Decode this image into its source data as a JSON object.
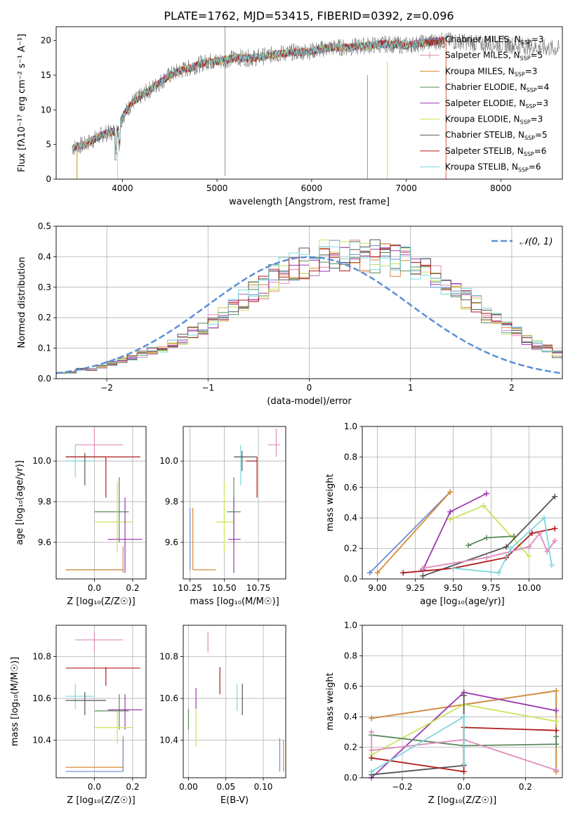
{
  "chart_data": [
    {
      "id": "spectrum",
      "type": "line",
      "title": "PLATE=1762, MJD=53415, FIBERID=0392, z=0.096",
      "xlabel": "wavelength [Angstrom, rest frame]",
      "ylabel": "Flux [fλ10⁻¹⁷ erg cm⁻² s⁻¹ A⁻¹]",
      "xlim": [
        3300,
        8650
      ],
      "ylim": [
        0,
        22
      ],
      "xticks": [
        4000,
        5000,
        6000,
        7000,
        8000
      ],
      "yticks": [
        0,
        5,
        10,
        15,
        20
      ],
      "grid": false,
      "legend_position": "right",
      "series": [
        {
          "name": "Chabrier MILES, N_SSP=3",
          "color": "#6a8fd8"
        },
        {
          "name": "Salpeter MILES, N_SSP=5",
          "color": "#e08cba"
        },
        {
          "name": "Kroupa MILES, N_SSP=3",
          "color": "#d98b33"
        },
        {
          "name": "Chabrier ELODIE, N_SSP=4",
          "color": "#5b8a5b"
        },
        {
          "name": "Salpeter ELODIE, N_SSP=3",
          "color": "#9b38b0"
        },
        {
          "name": "Kroupa ELODIE, N_SSP=3",
          "color": "#cbe35a"
        },
        {
          "name": "Chabrier STELIB, N_SSP=5",
          "color": "#555555"
        },
        {
          "name": "Salpeter STELIB, N_SSP=6",
          "color": "#b01b1b"
        },
        {
          "name": "Kroupa STELIB, N_SSP=6",
          "color": "#7fd6dc"
        }
      ],
      "continuum": {
        "x": [
          3470,
          3600,
          3800,
          3950,
          4000,
          4100,
          4200,
          4300,
          4400,
          4500,
          4600,
          4700,
          4800,
          4900,
          5000,
          5200,
          5400,
          5600,
          5800,
          6000,
          6200,
          6400,
          6600,
          6800,
          7000,
          7200,
          7400,
          7600,
          7800,
          8000,
          8200,
          8400,
          8600
        ],
        "y": [
          4.5,
          5.0,
          6.5,
          7.0,
          9.0,
          11.0,
          12.0,
          13.0,
          14.0,
          15.0,
          15.6,
          16.0,
          16.5,
          17.0,
          17.0,
          17.5,
          17.5,
          18.0,
          18.3,
          18.5,
          19.0,
          19.0,
          19.3,
          19.5,
          19.3,
          19.7,
          20.0,
          19.8,
          19.5,
          19.5,
          19.3,
          19.0,
          18.8
        ]
      }
    },
    {
      "id": "residuals",
      "type": "bar",
      "xlabel": "(data-model)/error",
      "ylabel": "Normed distribution",
      "xlim": [
        -2.5,
        2.5
      ],
      "ylim": [
        0,
        0.5
      ],
      "xticks": [
        -2,
        -1,
        0,
        1,
        2
      ],
      "yticks": [
        0.0,
        0.1,
        0.2,
        0.3,
        0.4,
        0.5
      ],
      "grid": true,
      "legend_position": "top-right",
      "reference": {
        "name": "𝒩(0, 1)",
        "color": "#5b8fd6",
        "mean": 0,
        "sigma": 1
      },
      "bin_width": 0.1,
      "bin_start": -2.5,
      "series_values": [
        0.02,
        0.02,
        0.03,
        0.03,
        0.04,
        0.05,
        0.06,
        0.07,
        0.08,
        0.09,
        0.1,
        0.12,
        0.13,
        0.15,
        0.17,
        0.19,
        0.21,
        0.23,
        0.26,
        0.28,
        0.3,
        0.33,
        0.35,
        0.37,
        0.38,
        0.39,
        0.4,
        0.4,
        0.4,
        0.41,
        0.4,
        0.4,
        0.4,
        0.39,
        0.38,
        0.37,
        0.35,
        0.33,
        0.31,
        0.29,
        0.26,
        0.24,
        0.21,
        0.19,
        0.17,
        0.15,
        0.13,
        0.11,
        0.1,
        0.08
      ]
    },
    {
      "id": "age-vs-Z",
      "type": "scatter",
      "xlabel": "Z [log₁₀(Z/Z☉)]",
      "ylabel": "age  [log₁₀(age/yr)]",
      "xlim": [
        -0.2,
        0.27
      ],
      "ylim": [
        9.42,
        10.17
      ],
      "xticks": [
        0.0,
        0.2
      ],
      "yticks": [
        9.6,
        9.8,
        10.0
      ],
      "grid": true,
      "points": [
        {
          "x": -0.1,
          "y": 9.465,
          "xlo": -0.15,
          "xhi": 0.15,
          "ylo": 9.465,
          "yhi": 9.465,
          "c": "#6a8fd8"
        },
        {
          "x": 0.15,
          "y": 9.465,
          "xlo": -0.15,
          "xhi": 0.15,
          "ylo": 9.465,
          "yhi": 9.465,
          "c": "#d98b33"
        },
        {
          "x": 0.15,
          "y": 9.5,
          "xlo": 0.15,
          "xhi": 0.15,
          "ylo": 9.45,
          "yhi": 9.58,
          "c": "#d98b33"
        },
        {
          "x": 0.0,
          "y": 10.08,
          "xlo": -0.1,
          "xhi": 0.15,
          "ylo": 10.02,
          "yhi": 10.16,
          "c": "#e08cba"
        },
        {
          "x": -0.1,
          "y": 10.0,
          "xlo": -0.15,
          "xhi": 0.0,
          "ylo": 9.92,
          "yhi": 10.08,
          "c": "#7fd6dc"
        },
        {
          "x": -0.05,
          "y": 10.02,
          "xlo": -0.15,
          "xhi": 0.06,
          "ylo": 9.88,
          "yhi": 10.04,
          "c": "#555555"
        },
        {
          "x": 0.06,
          "y": 10.02,
          "xlo": -0.15,
          "xhi": 0.24,
          "ylo": 9.82,
          "yhi": 10.02,
          "c": "#b01b1b"
        },
        {
          "x": 0.13,
          "y": 9.75,
          "xlo": 0.0,
          "xhi": 0.18,
          "ylo": 9.6,
          "yhi": 9.92,
          "c": "#5b8a5b"
        },
        {
          "x": 0.12,
          "y": 9.7,
          "xlo": 0.0,
          "xhi": 0.2,
          "ylo": 9.55,
          "yhi": 9.9,
          "c": "#cbe35a"
        },
        {
          "x": 0.16,
          "y": 9.615,
          "xlo": 0.07,
          "xhi": 0.25,
          "ylo": 9.45,
          "yhi": 9.82,
          "c": "#9b38b0"
        }
      ]
    },
    {
      "id": "age-vs-mass",
      "type": "scatter",
      "xlabel": "mass [log₁₀(M/M☉)]",
      "ylabel": "",
      "xlim": [
        10.2,
        10.95
      ],
      "ylim": [
        9.42,
        10.17
      ],
      "xticks": [
        10.25,
        10.5,
        10.75
      ],
      "yticks": [
        9.6,
        9.8,
        10.0
      ],
      "grid": true,
      "points": [
        {
          "x": 10.27,
          "y": 9.465,
          "xlo": 10.27,
          "xhi": 10.44,
          "ylo": 9.465,
          "yhi": 9.465,
          "c": "#d98b33"
        },
        {
          "x": 10.27,
          "y": 9.6,
          "xlo": 10.27,
          "xhi": 10.27,
          "ylo": 9.465,
          "yhi": 9.77,
          "c": "#d98b33"
        },
        {
          "x": 10.25,
          "y": 9.6,
          "xlo": 10.25,
          "xhi": 10.25,
          "ylo": 9.465,
          "yhi": 9.77,
          "c": "#6a8fd8"
        },
        {
          "x": 10.88,
          "y": 10.08,
          "xlo": 10.82,
          "xhi": 10.91,
          "ylo": 10.02,
          "yhi": 10.16,
          "c": "#e08cba"
        },
        {
          "x": 10.62,
          "y": 10.02,
          "xlo": 10.57,
          "xhi": 10.67,
          "ylo": 9.88,
          "yhi": 10.08,
          "c": "#7fd6dc"
        },
        {
          "x": 10.63,
          "y": 10.02,
          "xlo": 10.57,
          "xhi": 10.74,
          "ylo": 9.95,
          "yhi": 10.05,
          "c": "#555555"
        },
        {
          "x": 10.74,
          "y": 10.0,
          "xlo": 10.66,
          "xhi": 10.74,
          "ylo": 9.82,
          "yhi": 10.02,
          "c": "#b01b1b"
        },
        {
          "x": 10.57,
          "y": 9.75,
          "xlo": 10.52,
          "xhi": 10.62,
          "ylo": 9.6,
          "yhi": 9.92,
          "c": "#5b8a5b"
        },
        {
          "x": 10.5,
          "y": 9.7,
          "xlo": 10.44,
          "xhi": 10.57,
          "ylo": 9.55,
          "yhi": 9.9,
          "c": "#cbe35a"
        },
        {
          "x": 10.57,
          "y": 9.615,
          "xlo": 10.53,
          "xhi": 10.62,
          "ylo": 9.45,
          "yhi": 9.82,
          "c": "#9b38b0"
        }
      ]
    },
    {
      "id": "massweight-vs-age",
      "type": "line",
      "xlabel": "age  [log₁₀(age/yr)]",
      "ylabel": "mass weight",
      "xlim": [
        8.9,
        10.22
      ],
      "ylim": [
        0,
        1
      ],
      "xticks": [
        9.0,
        9.5,
        10.0
      ],
      "xticklabels": [
        "9.00",
        "9.25",
        "9.50",
        "9.75",
        "10.00"
      ],
      "xtickvalues": [
        9.0,
        9.25,
        9.5,
        9.75,
        10.0
      ],
      "yticks": [
        0.0,
        0.2,
        0.4,
        0.6,
        0.8,
        1.0
      ],
      "grid": true,
      "series": [
        {
          "c": "#6a8fd8",
          "x": [
            8.95,
            9.48
          ],
          "y": [
            0.04,
            0.57
          ]
        },
        {
          "c": "#d98b33",
          "x": [
            9.0,
            9.48
          ],
          "y": [
            0.04,
            0.57
          ]
        },
        {
          "c": "#9b38b0",
          "x": [
            9.3,
            9.48,
            9.72
          ],
          "y": [
            0.06,
            0.44,
            0.56
          ]
        },
        {
          "c": "#cbe35a",
          "x": [
            9.48,
            9.7,
            10.0
          ],
          "y": [
            0.39,
            0.48,
            0.15
          ]
        },
        {
          "c": "#5b8a5b",
          "x": [
            9.6,
            9.72,
            9.9
          ],
          "y": [
            0.22,
            0.27,
            0.28
          ]
        },
        {
          "c": "#555555",
          "x": [
            9.3,
            9.85,
            10.17
          ],
          "y": [
            0.02,
            0.21,
            0.54
          ]
        },
        {
          "c": "#b01b1b",
          "x": [
            9.17,
            9.5,
            9.85,
            10.02,
            10.17
          ],
          "y": [
            0.04,
            0.07,
            0.14,
            0.3,
            0.33
          ]
        },
        {
          "c": "#e08cba",
          "x": [
            9.3,
            9.72,
            10.0,
            10.07,
            10.12,
            10.17
          ],
          "y": [
            0.07,
            0.14,
            0.21,
            0.3,
            0.18,
            0.25
          ]
        },
        {
          "c": "#7fd6dc",
          "x": [
            9.5,
            9.8,
            9.88,
            10.1,
            10.15
          ],
          "y": [
            0.07,
            0.04,
            0.2,
            0.4,
            0.09
          ]
        }
      ]
    },
    {
      "id": "mass-vs-Z",
      "type": "scatter",
      "xlabel": "Z [log₁₀(Z/Z☉)]",
      "ylabel": "mass [log₁₀(M/M☉)]",
      "xlim": [
        -0.2,
        0.27
      ],
      "ylim": [
        10.22,
        10.95
      ],
      "xticks": [
        0.0,
        0.2
      ],
      "yticks": [
        10.4,
        10.6,
        10.8
      ],
      "grid": true,
      "points": [
        {
          "x": 0.0,
          "y": 10.88,
          "xlo": -0.1,
          "xhi": 0.15,
          "ylo": 10.82,
          "yhi": 10.92,
          "c": "#e08cba"
        },
        {
          "x": 0.06,
          "y": 10.745,
          "xlo": -0.15,
          "xhi": 0.24,
          "ylo": 10.66,
          "yhi": 10.75,
          "c": "#b01b1b"
        },
        {
          "x": -0.1,
          "y": 10.61,
          "xlo": -0.15,
          "xhi": 0.0,
          "ylo": 10.55,
          "yhi": 10.67,
          "c": "#7fd6dc"
        },
        {
          "x": -0.05,
          "y": 10.59,
          "xlo": -0.15,
          "xhi": 0.06,
          "ylo": 10.52,
          "yhi": 10.63,
          "c": "#555555"
        },
        {
          "x": 0.13,
          "y": 10.54,
          "xlo": 0.0,
          "xhi": 0.18,
          "ylo": 10.45,
          "yhi": 10.62,
          "c": "#5b8a5b"
        },
        {
          "x": 0.16,
          "y": 10.545,
          "xlo": 0.07,
          "xhi": 0.25,
          "ylo": 10.45,
          "yhi": 10.62,
          "c": "#9b38b0"
        },
        {
          "x": 0.12,
          "y": 10.46,
          "xlo": 0.0,
          "xhi": 0.2,
          "ylo": 10.38,
          "yhi": 10.54,
          "c": "#cbe35a"
        },
        {
          "x": 0.15,
          "y": 10.27,
          "xlo": -0.15,
          "xhi": 0.15,
          "ylo": 10.25,
          "yhi": 10.42,
          "c": "#d98b33"
        },
        {
          "x": 0.15,
          "y": 10.25,
          "xlo": -0.15,
          "xhi": 0.15,
          "ylo": 10.25,
          "yhi": 10.41,
          "c": "#6a8fd8"
        }
      ]
    },
    {
      "id": "mass-vs-ebv",
      "type": "scatter",
      "xlabel": "E(B-V)",
      "ylabel": "",
      "xlim": [
        -0.007,
        0.13
      ],
      "ylim": [
        10.22,
        10.95
      ],
      "xticks": [
        0.0,
        0.05,
        0.1
      ],
      "yticks": [
        10.4,
        10.6,
        10.8
      ],
      "grid": true,
      "points": [
        {
          "x": 0.026,
          "y": 10.88,
          "xlo": 0.026,
          "xhi": 0.026,
          "ylo": 10.82,
          "yhi": 10.92,
          "c": "#e08cba"
        },
        {
          "x": 0.042,
          "y": 10.68,
          "xlo": 0.042,
          "xhi": 0.042,
          "ylo": 10.62,
          "yhi": 10.75,
          "c": "#b01b1b"
        },
        {
          "x": 0.065,
          "y": 10.61,
          "xlo": 0.065,
          "xhi": 0.065,
          "ylo": 10.54,
          "yhi": 10.67,
          "c": "#7fd6dc"
        },
        {
          "x": 0.072,
          "y": 10.59,
          "xlo": 0.072,
          "xhi": 0.072,
          "ylo": 10.52,
          "yhi": 10.67,
          "c": "#555555"
        },
        {
          "x": 0.01,
          "y": 10.6,
          "xlo": 0.01,
          "xhi": 0.01,
          "ylo": 10.55,
          "yhi": 10.65,
          "c": "#9b38b0"
        },
        {
          "x": 0.01,
          "y": 10.45,
          "xlo": 0.01,
          "xhi": 0.01,
          "ylo": 10.37,
          "yhi": 10.55,
          "c": "#cbe35a"
        },
        {
          "x": 0.0,
          "y": 10.5,
          "xlo": 0.0,
          "xhi": 0.0,
          "ylo": 10.45,
          "yhi": 10.55,
          "c": "#5b8a5b"
        },
        {
          "x": 0.122,
          "y": 10.33,
          "xlo": 0.122,
          "xhi": 0.122,
          "ylo": 10.25,
          "yhi": 10.41,
          "c": "#6a8fd8"
        },
        {
          "x": 0.127,
          "y": 10.33,
          "xlo": 0.127,
          "xhi": 0.127,
          "ylo": 10.25,
          "yhi": 10.4,
          "c": "#d98b33"
        }
      ]
    },
    {
      "id": "massweight-vs-Z",
      "type": "line",
      "xlabel": "Z [log₁₀(Z/Z☉)]",
      "ylabel": "mass weight",
      "xlim": [
        -0.33,
        0.32
      ],
      "ylim": [
        0,
        1
      ],
      "xticks": [
        -0.2,
        0.0,
        0.2
      ],
      "yticks": [
        0.0,
        0.2,
        0.4,
        0.6,
        0.8,
        1.0
      ],
      "grid": true,
      "series": [
        {
          "c": "#6a8fd8",
          "x": [
            -0.3,
            0.3,
            0.3
          ],
          "y": [
            0.39,
            0.57,
            0.04
          ]
        },
        {
          "c": "#d98b33",
          "x": [
            -0.3,
            0.3,
            0.3
          ],
          "y": [
            0.39,
            0.57,
            0.04
          ]
        },
        {
          "c": "#9b38b0",
          "x": [
            -0.3,
            0.0,
            0.3
          ],
          "y": [
            0.0,
            0.56,
            0.44
          ]
        },
        {
          "c": "#cbe35a",
          "x": [
            -0.3,
            0.0,
            0.3
          ],
          "y": [
            0.15,
            0.48,
            0.37
          ]
        },
        {
          "c": "#5b8a5b",
          "x": [
            -0.3,
            0.0,
            0.3,
            0.3
          ],
          "y": [
            0.28,
            0.21,
            0.22,
            0.27
          ]
        },
        {
          "c": "#555555",
          "x": [
            -0.3,
            0.0,
            0.0
          ],
          "y": [
            0.02,
            0.08,
            0.54
          ]
        },
        {
          "c": "#b01b1b",
          "x": [
            -0.3,
            0.0,
            0.0,
            0.3
          ],
          "y": [
            0.13,
            0.04,
            0.33,
            0.31
          ]
        },
        {
          "c": "#e08cba",
          "x": [
            -0.3,
            -0.3,
            0.0,
            0.3
          ],
          "y": [
            0.3,
            0.18,
            0.25,
            0.05
          ]
        },
        {
          "c": "#7fd6dc",
          "x": [
            -0.3,
            0.0,
            0.0
          ],
          "y": [
            0.04,
            0.4,
            0.09
          ]
        }
      ]
    }
  ]
}
